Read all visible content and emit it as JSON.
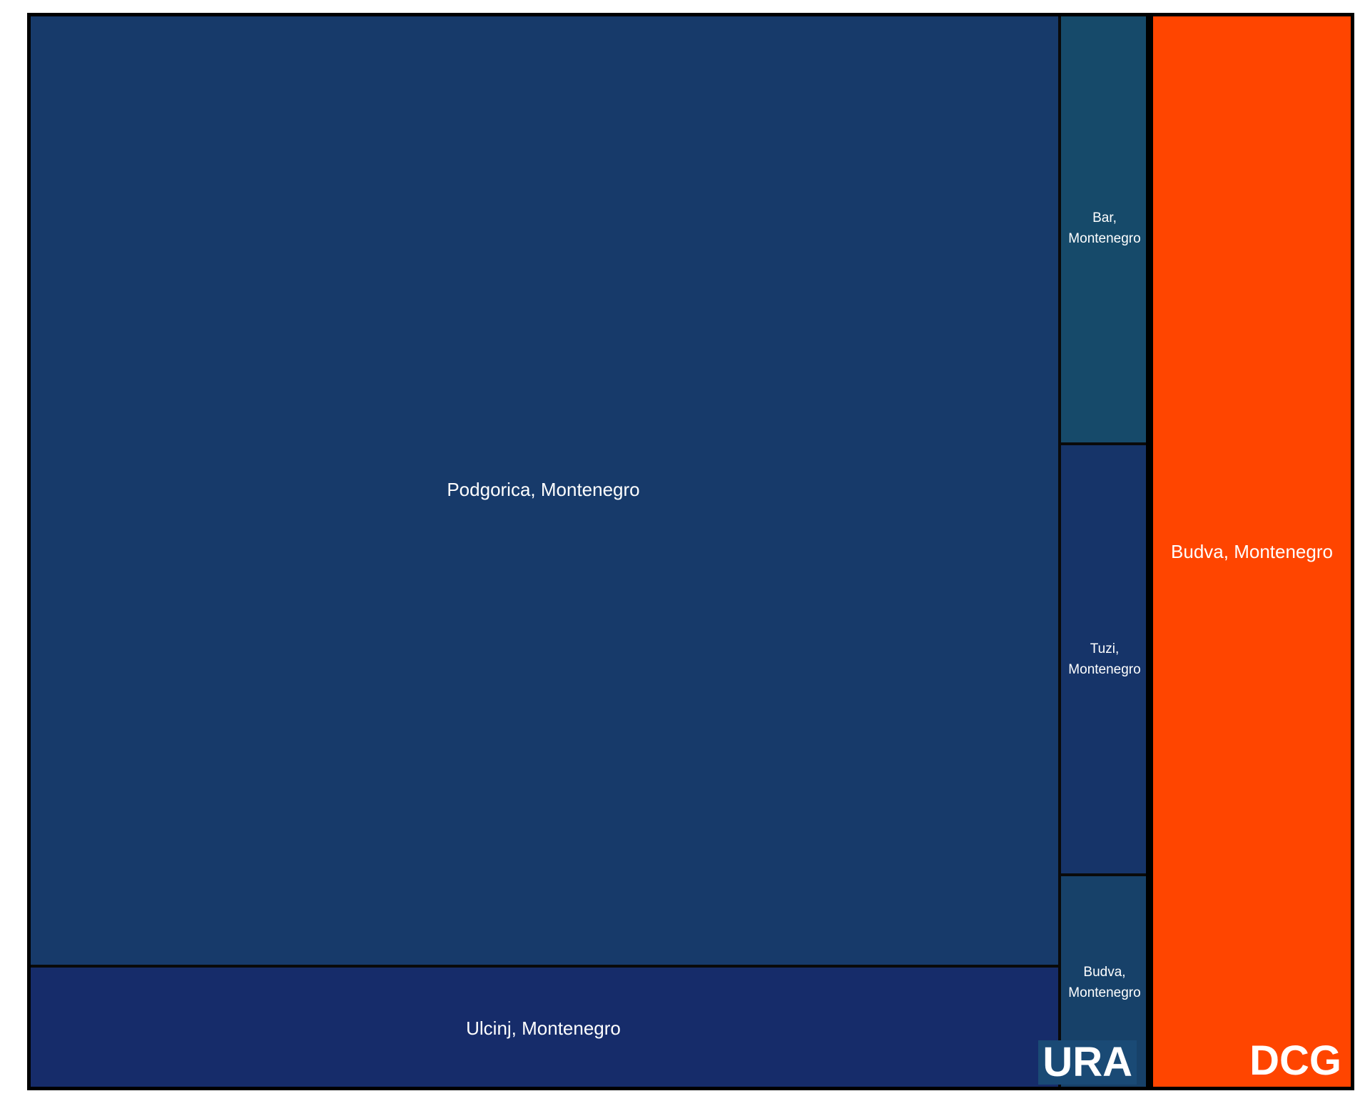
{
  "chart_data": {
    "type": "treemap",
    "groups": [
      {
        "name": "URA",
        "color": "#173A6A",
        "children": [
          {
            "label": "Podgorica, Montenegro",
            "value": 81.5,
            "color": "#173A6A"
          },
          {
            "label": "Ulcinj, Montenegro",
            "value": 10.6,
            "color": "#162C6A"
          },
          {
            "label": "Bar, Montenegro",
            "value": 3.2,
            "color": "#164A6A"
          },
          {
            "label": "Tuzi, Montenegro",
            "value": 3.2,
            "color": "#163469"
          },
          {
            "label": "Budva, Montenegro",
            "value": 1.6,
            "color": "#174169"
          }
        ]
      },
      {
        "name": "DCG",
        "color": "#FF4500",
        "children": [
          {
            "label": "Budva, Montenegro",
            "value": 18.3,
            "color": "#FF4500"
          }
        ]
      }
    ]
  }
}
